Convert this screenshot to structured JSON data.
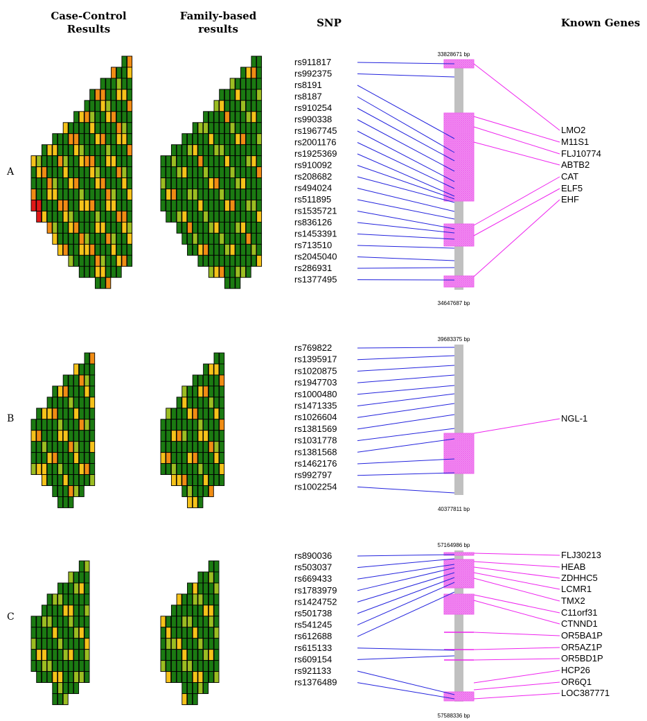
{
  "headers": {
    "case_control": [
      "Case-Control",
      "Results"
    ],
    "family_based": [
      "Family-based",
      "results"
    ],
    "snp": "SNP",
    "known_genes": "Known Genes"
  },
  "colors": {
    "dark_green": "#1b7a12",
    "light_green": "#9bbd22",
    "yellow": "#f5c21a",
    "orange": "#f08c14",
    "red": "#e01818",
    "snp_line": "#2222dd",
    "gene_line": "#ee22ee",
    "gene_box": "#ee66ee",
    "chromosome": "#c0c0c0"
  },
  "panels": [
    {
      "label": "A",
      "bp_start": "33828671 bp",
      "bp_end": "34647687 bp",
      "snps": [
        "rs911817",
        "rs992375",
        "rs8191",
        "rs8187",
        "rs910254",
        "rs990338",
        "rs1967745",
        "rs2001176",
        "rs1925369",
        "rs910092",
        "rs208682",
        "rs494024",
        "rs511895",
        "rs1535721",
        "rs836126",
        "rs1453391",
        "rs713510",
        "rs2045040",
        "rs286931",
        "rs1377495"
      ],
      "genes": [
        "LMO2",
        "M11S1",
        "FLJ10774",
        "ABTB2",
        "CAT",
        "ELF5",
        "EHF"
      ]
    },
    {
      "label": "B",
      "bp_start": "39683375 bp",
      "bp_end": "40377811 bp",
      "snps": [
        "rs769822",
        "rs1395917",
        "rs1020875",
        "rs1947703",
        "rs1000480",
        "rs1471335",
        "rs1026604",
        "rs1381569",
        "rs1031778",
        "rs1381568",
        "rs1462176",
        "rs992797",
        "rs1002254"
      ],
      "genes": [
        "NGL-1"
      ]
    },
    {
      "label": "C",
      "bp_start": "57164986 bp",
      "bp_end": "57588336 bp",
      "snps": [
        "rs890036",
        "rs503037",
        "rs669433",
        "rs1783979",
        "rs1424752",
        "rs501738",
        "rs541245",
        "rs612688",
        "rs615133",
        "rs609154",
        "rs921133",
        "rs1376489"
      ],
      "genes": [
        "FLJ30213",
        "HEAB",
        "ZDHHC5",
        "LCMR1",
        "TMX2",
        "C11orf31",
        "CTNND1",
        "OR5BA1P",
        "OR5AZ1P",
        "OR5BD1P",
        "HCP26",
        "OR6Q1",
        "LOC387771"
      ]
    }
  ]
}
